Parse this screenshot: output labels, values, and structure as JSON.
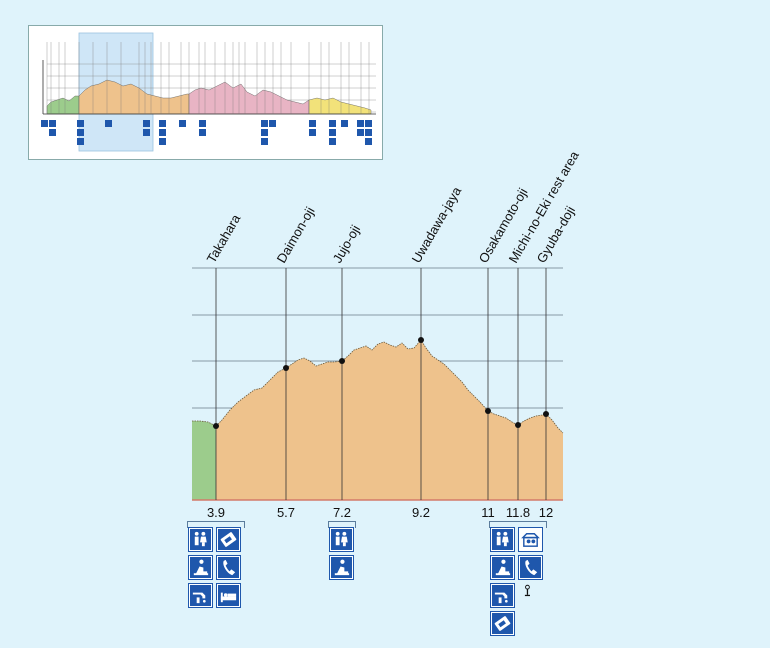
{
  "chart_data": {
    "type": "area",
    "title": "",
    "xlabel": "",
    "ylabel": "",
    "places": [
      {
        "name": "Takahara",
        "km": "3.9"
      },
      {
        "name": "Daimon-oji",
        "km": "5.7"
      },
      {
        "name": "Jujo-oji",
        "km": "7.2"
      },
      {
        "name": "Uwadawa-jaya",
        "km": "9.2"
      },
      {
        "name": "Osakamoto-oji",
        "km": "11"
      },
      {
        "name": "Michi-no-Eki rest area",
        "km": "11.8"
      },
      {
        "name": "Gyuba-doji",
        "km": "12"
      }
    ],
    "segments": [
      {
        "name": "green",
        "color": "#9ccc8c"
      },
      {
        "name": "orange",
        "color": "#eec28c"
      }
    ],
    "profile_color_line": "#6b5a3c"
  },
  "facilities": [
    {
      "place": "Takahara",
      "icons": [
        "toilet-icon",
        "ticket-icon",
        "rest-area-icon",
        "phone-icon",
        "water-icon",
        "lodging-icon"
      ]
    },
    {
      "place": "Jujo-oji",
      "icons": [
        "toilet-icon",
        "rest-area-icon"
      ]
    },
    {
      "place": "Osakamoto-oji",
      "icons": [
        "toilet-icon",
        "shop-icon",
        "rest-area-icon",
        "phone-icon",
        "water-icon",
        "bus-stop-icon",
        "ticket-icon"
      ]
    }
  ],
  "colors": {
    "background": "#dff3fb",
    "icon_blue": "#1f57ac",
    "green_area": "#9ccc8c",
    "orange_area": "#eec28c",
    "pink_area": "#e8b4c4",
    "yellow_area": "#f2e27a",
    "highlight": "#cfe6f7"
  }
}
